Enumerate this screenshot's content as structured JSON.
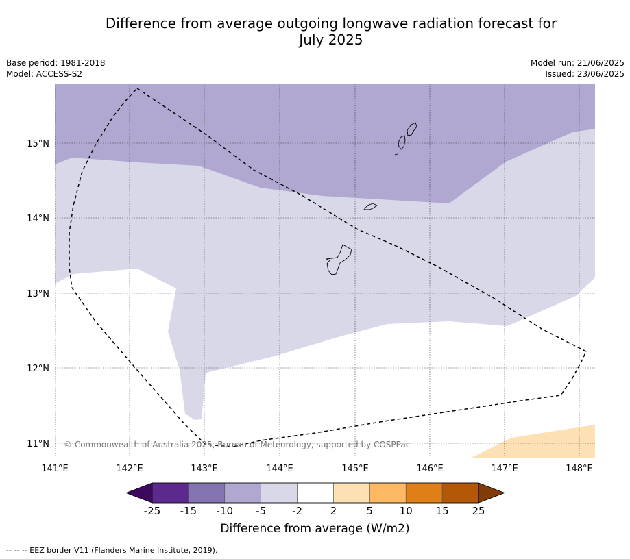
{
  "title_line1": "Difference from average outgoing longwave radiation forecast for",
  "title_line2": "July 2025",
  "base_period": "Base period: 1981-2018",
  "model": "Model: ACCESS-S2",
  "model_run": "Model run: 21/06/2025",
  "issued": "Issued: 23/06/2025",
  "copyright": "© Commonwealth of Australia 2025, Bureau of Meteorology, supported by COSPPac",
  "lat_labels": [
    "15°N",
    "14°N",
    "13°N",
    "12°N",
    "11°N"
  ],
  "lon_labels": [
    "141°E",
    "142°E",
    "143°E",
    "144°E",
    "145°E",
    "146°E",
    "147°E",
    "148°E"
  ],
  "colorbar": {
    "label": "Difference from average (W/m2)",
    "ticks": [
      "-25",
      "-15",
      "-10",
      "-5",
      "-2",
      "2",
      "5",
      "10",
      "15",
      "25"
    ],
    "colors": [
      "#3b0a5c",
      "#5c2a8c",
      "#8474b0",
      "#b0a8d1",
      "#d8d8e9",
      "#ffffff",
      "#fde0b4",
      "#fcb862",
      "#e07f16",
      "#b35806",
      "#7f3b08"
    ]
  },
  "footnote": "--  --  -- EEZ border V11 (Flanders Marine Institute, 2019)."
}
